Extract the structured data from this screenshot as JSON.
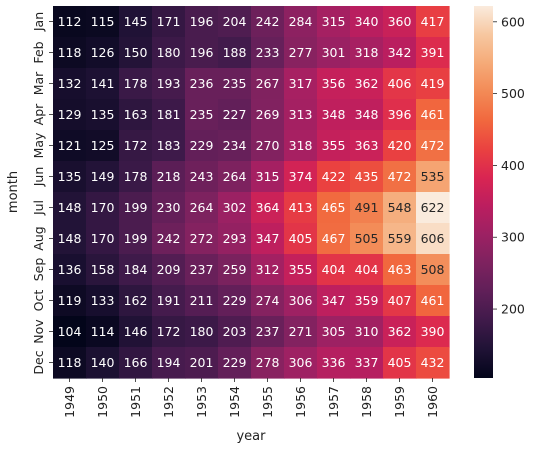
{
  "chart_data": {
    "type": "heatmap",
    "title": "",
    "xlabel": "year",
    "ylabel": "month",
    "x_categories": [
      "1949",
      "1950",
      "1951",
      "1952",
      "1953",
      "1954",
      "1955",
      "1956",
      "1957",
      "1958",
      "1959",
      "1960"
    ],
    "y_categories": [
      "Jan",
      "Feb",
      "Mar",
      "Apr",
      "May",
      "Jun",
      "Jul",
      "Aug",
      "Sep",
      "Oct",
      "Nov",
      "Dec"
    ],
    "values": [
      [
        112,
        115,
        145,
        171,
        196,
        204,
        242,
        284,
        315,
        340,
        360,
        417
      ],
      [
        118,
        126,
        150,
        180,
        196,
        188,
        233,
        277,
        301,
        318,
        342,
        391
      ],
      [
        132,
        141,
        178,
        193,
        236,
        235,
        267,
        317,
        356,
        362,
        406,
        419
      ],
      [
        129,
        135,
        163,
        181,
        235,
        227,
        269,
        313,
        348,
        348,
        396,
        461
      ],
      [
        121,
        125,
        172,
        183,
        229,
        234,
        270,
        318,
        355,
        363,
        420,
        472
      ],
      [
        135,
        149,
        178,
        218,
        243,
        264,
        315,
        374,
        422,
        435,
        472,
        535
      ],
      [
        148,
        170,
        199,
        230,
        264,
        302,
        364,
        413,
        465,
        491,
        548,
        622
      ],
      [
        148,
        170,
        199,
        242,
        272,
        293,
        347,
        405,
        467,
        505,
        559,
        606
      ],
      [
        136,
        158,
        184,
        209,
        237,
        259,
        312,
        355,
        404,
        404,
        463,
        508
      ],
      [
        119,
        133,
        162,
        191,
        211,
        229,
        274,
        306,
        347,
        359,
        407,
        461
      ],
      [
        104,
        114,
        146,
        172,
        180,
        203,
        237,
        271,
        305,
        310,
        362,
        390
      ],
      [
        118,
        140,
        166,
        194,
        201,
        229,
        278,
        306,
        336,
        337,
        405,
        432
      ]
    ],
    "colorbar": {
      "min": 104,
      "max": 622,
      "ticks": [
        "200",
        "300",
        "400",
        "500",
        "600"
      ]
    },
    "colormap": [
      "#03051a",
      "#1f1235",
      "#3f1a4a",
      "#5f1f58",
      "#7d225f",
      "#9c2163",
      "#bb1e5f",
      "#d92552",
      "#ea4240",
      "#f1683e",
      "#f38a56",
      "#f5aa78",
      "#f7c7a0",
      "#faebdd"
    ],
    "grid": false,
    "legend": "colorbar-right"
  }
}
